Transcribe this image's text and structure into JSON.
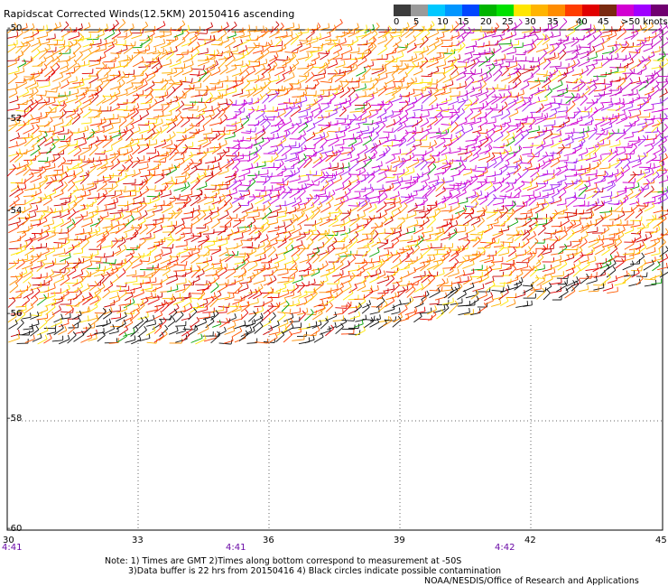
{
  "title": "Rapidscat Corrected Winds(12.5KM) 20150416 ascending",
  "scale": {
    "colors": [
      "#3c3c3c",
      "#9a9a9a",
      "#00c8ff",
      "#0096ff",
      "#0046ff",
      "#00b400",
      "#00e100",
      "#ffe600",
      "#ffb400",
      "#ff8c00",
      "#ff3c00",
      "#e10000",
      "#7a2a10",
      "#d200d2",
      "#a000ff",
      "#700070"
    ],
    "labels": [
      "0",
      "5",
      "10",
      "15",
      "20",
      "25",
      "30",
      "35",
      "40",
      "45",
      ">50 knots"
    ]
  },
  "map": {
    "lat_labels": [
      "-50",
      "-52",
      "-54",
      "-56",
      "-58",
      "-60"
    ],
    "lon_labels": [
      "30",
      "33",
      "36",
      "39",
      "42",
      "45"
    ],
    "times": [
      "4:41",
      "4:41",
      "4:42"
    ],
    "data_extent_note": "wind barbs cover latitudes -50 to about -56.5"
  },
  "notes": {
    "line1": "Note: 1) Times are GMT 2)Times along bottom correspond to measurement at -50S",
    "line2": "3)Data buffer is 22 hrs from 20150416 4) Black circles indicate possible contamination",
    "line3": "NOAA/NESDIS/Office of Research and Applications"
  }
}
